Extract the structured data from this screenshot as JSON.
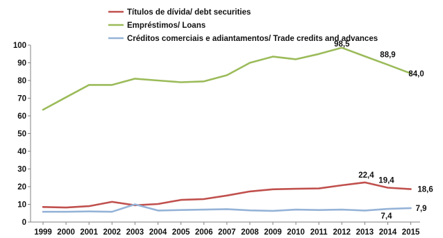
{
  "chart_data": {
    "type": "line",
    "title": "",
    "xlabel": "",
    "ylabel": "",
    "ylim": [
      0,
      100
    ],
    "yticks": [
      0,
      10,
      20,
      30,
      40,
      50,
      60,
      70,
      80,
      90,
      100
    ],
    "grid": false,
    "legend_position": "top-center",
    "x": [
      "1999",
      "2000",
      "2001",
      "2002",
      "2003",
      "2004",
      "2005",
      "2006",
      "2007",
      "2008",
      "2009",
      "2010",
      "2011",
      "2012",
      "2013",
      "2014",
      "2015"
    ],
    "series": [
      {
        "name": "Títulos de dívida/ debt securities",
        "color": "#c0504d",
        "values": [
          8.5,
          8.2,
          9.0,
          11.4,
          9.5,
          10.2,
          12.5,
          13.0,
          15.0,
          17.3,
          18.5,
          18.8,
          19.0,
          20.8,
          22.4,
          19.4,
          18.6
        ]
      },
      {
        "name": "Empréstimos/ Loans",
        "color": "#9bbb59",
        "values": [
          63.5,
          70.5,
          77.5,
          77.5,
          81.0,
          80.0,
          79.0,
          79.5,
          83.0,
          90.0,
          93.5,
          92.0,
          95.0,
          98.5,
          93.7,
          88.9,
          84.0
        ]
      },
      {
        "name": "Créditos comerciais e adiantamentos/ Trade credits and advances",
        "color": "#95b3d7",
        "values": [
          5.8,
          5.8,
          6.0,
          5.8,
          10.0,
          6.5,
          6.8,
          7.0,
          7.3,
          6.6,
          6.3,
          7.0,
          6.8,
          7.0,
          6.5,
          7.4,
          7.9
        ]
      }
    ],
    "data_labels": [
      {
        "series": 1,
        "x": "2012",
        "text": "98,5"
      },
      {
        "series": 1,
        "x": "2014",
        "text": "88,9"
      },
      {
        "series": 1,
        "x": "2015",
        "text": "84,0"
      },
      {
        "series": 0,
        "x": "2013",
        "text": "22,4"
      },
      {
        "series": 0,
        "x": "2014",
        "text": "19,4"
      },
      {
        "series": 0,
        "x": "2015",
        "text": "18,6"
      },
      {
        "series": 2,
        "x": "2014",
        "text": "7,4"
      },
      {
        "series": 2,
        "x": "2015",
        "text": "7,9"
      }
    ]
  }
}
